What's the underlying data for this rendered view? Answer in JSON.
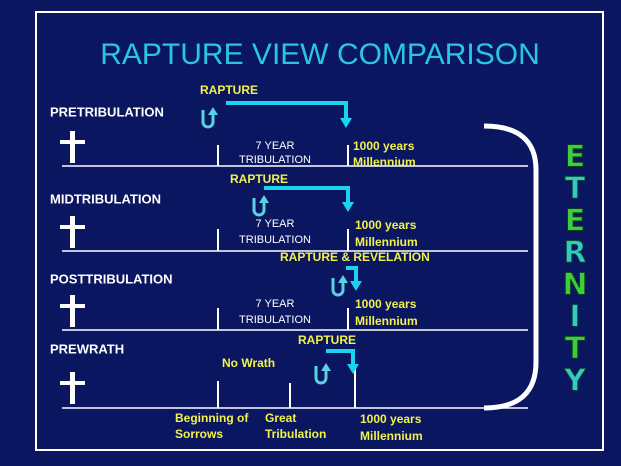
{
  "title": "RAPTURE VIEW COMPARISON",
  "views": [
    {
      "name": "PRETRIBULATION",
      "rapture": "RAPTURE",
      "tribulation": [
        "7 YEAR",
        "TRIBULATION"
      ],
      "millennium": [
        "1000 years",
        "Millennium"
      ]
    },
    {
      "name": "MIDTRIBULATION",
      "rapture": "RAPTURE",
      "tribulation": [
        "7 YEAR",
        "TRIBULATION"
      ],
      "millennium": [
        "1000 years",
        "Millennium"
      ]
    },
    {
      "name": "POSTTRIBULATION",
      "rapture": "RAPTURE & REVELATION",
      "tribulation": [
        "7 YEAR",
        "TRIBULATION"
      ],
      "millennium": [
        "1000 years",
        "Millennium"
      ]
    },
    {
      "name": "PREWRATH",
      "rapture": "RAPTURE",
      "no_wrath": "No Wrath",
      "sorrows": [
        "Beginning of",
        "Sorrows"
      ],
      "great": [
        "Great",
        "Tribulation"
      ],
      "millennium": [
        "1000 years",
        "Millennium"
      ]
    }
  ],
  "eternity": [
    "E",
    "T",
    "E",
    "R",
    "N",
    "I",
    "T",
    "Y"
  ]
}
